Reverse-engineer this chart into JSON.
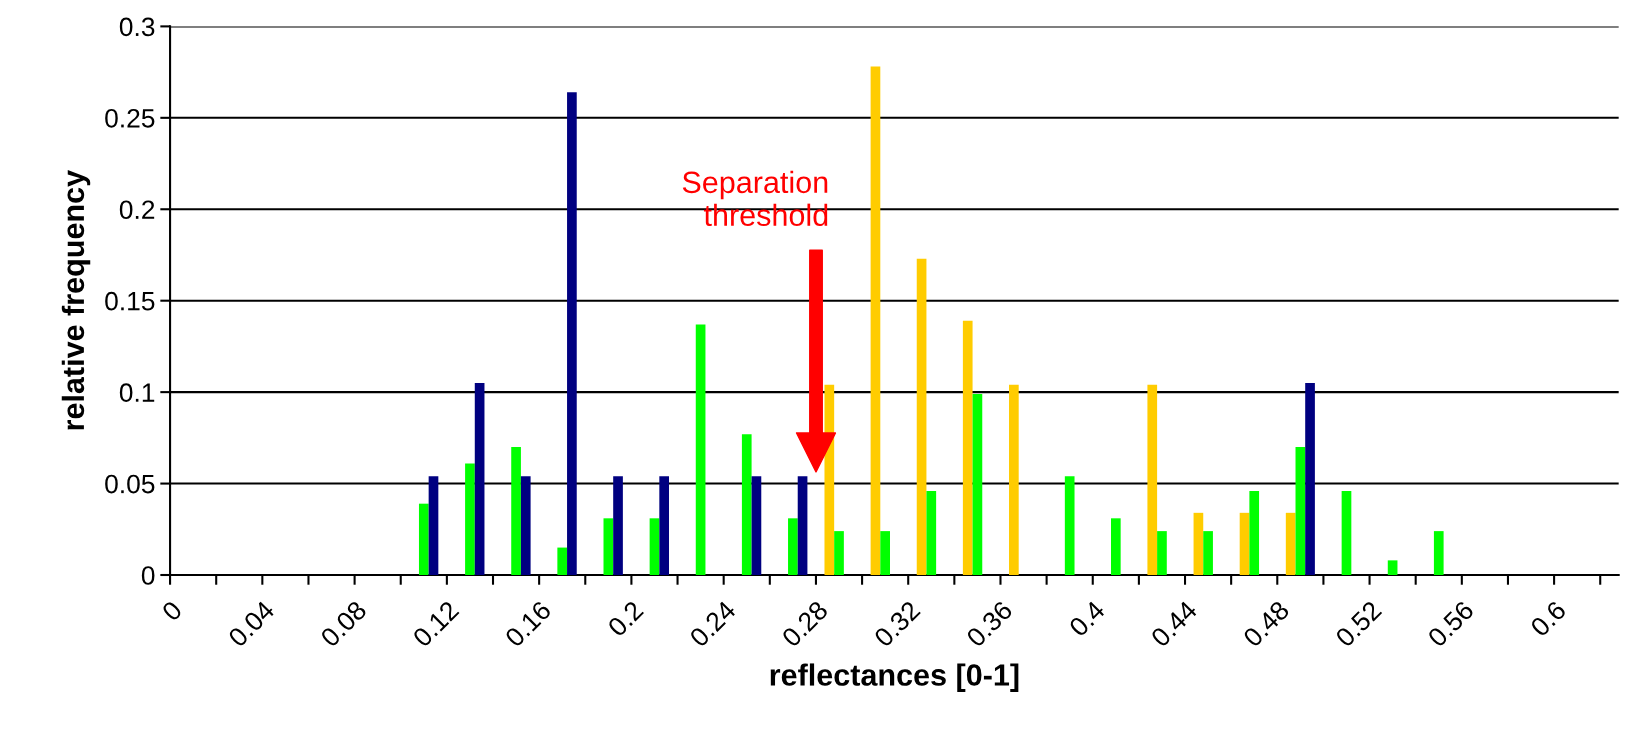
{
  "chart_data": {
    "type": "bar",
    "xlabel": "reflectances [0-1]",
    "ylabel": "relative frequency",
    "xlim": [
      0,
      0.628
    ],
    "ylim": [
      0,
      0.3
    ],
    "xticks": [
      0,
      {
        "value": 0.02,
        "label": null
      },
      0.04,
      {
        "value": 0.06,
        "label": null
      },
      0.08,
      {
        "value": 0.1,
        "label": null
      },
      0.12,
      {
        "value": 0.14,
        "label": null
      },
      0.16,
      {
        "value": 0.18,
        "label": null
      },
      0.2,
      {
        "value": 0.22,
        "label": null
      },
      0.24,
      {
        "value": 0.26,
        "label": null
      },
      0.28,
      {
        "value": 0.3,
        "label": null
      },
      0.32,
      {
        "value": 0.34,
        "label": null
      },
      0.36,
      {
        "value": 0.38,
        "label": null
      },
      0.4,
      {
        "value": 0.42,
        "label": null
      },
      0.44,
      {
        "value": 0.46,
        "label": null
      },
      0.48,
      {
        "value": 0.5,
        "label": null
      },
      0.52,
      {
        "value": 0.54,
        "label": null
      },
      0.56,
      {
        "value": 0.58,
        "label": null
      },
      0.6,
      {
        "value": 0.62,
        "label": null
      }
    ],
    "yticks": [
      0,
      0.05,
      0.1,
      0.15,
      0.2,
      0.25,
      0.3
    ],
    "grid": "y",
    "legend": false,
    "series": [
      {
        "color": "#ffcc00",
        "x": [
          0.29,
          0.31,
          0.33,
          0.35,
          0.37,
          0.43,
          0.45,
          0.47,
          0.49
        ],
        "values": [
          0.104,
          0.278,
          0.173,
          0.139,
          0.104,
          0.104,
          0.034,
          0.034,
          0.034
        ]
      },
      {
        "color": "#00ff00",
        "x": [
          0.11,
          0.13,
          0.15,
          0.17,
          0.19,
          0.21,
          0.23,
          0.25,
          0.27,
          0.29,
          0.31,
          0.33,
          0.35,
          0.39,
          0.41,
          0.43,
          0.45,
          0.47,
          0.49,
          0.51,
          0.53,
          0.55
        ],
        "values": [
          0.039,
          0.061,
          0.07,
          0.015,
          0.031,
          0.031,
          0.137,
          0.077,
          0.031,
          0.024,
          0.024,
          0.046,
          0.099,
          0.054,
          0.031,
          0.024,
          0.024,
          0.046,
          0.07,
          0.046,
          0.008,
          0.024
        ]
      },
      {
        "color": "#000080",
        "x": [
          0.11,
          0.13,
          0.15,
          0.17,
          0.19,
          0.21,
          0.25,
          0.27,
          0.49
        ],
        "values": [
          0.054,
          0.105,
          0.054,
          0.264,
          0.054,
          0.054,
          0.054,
          0.054,
          0.105
        ]
      }
    ],
    "annotations": [
      "Separation\nthreshold"
    ]
  }
}
